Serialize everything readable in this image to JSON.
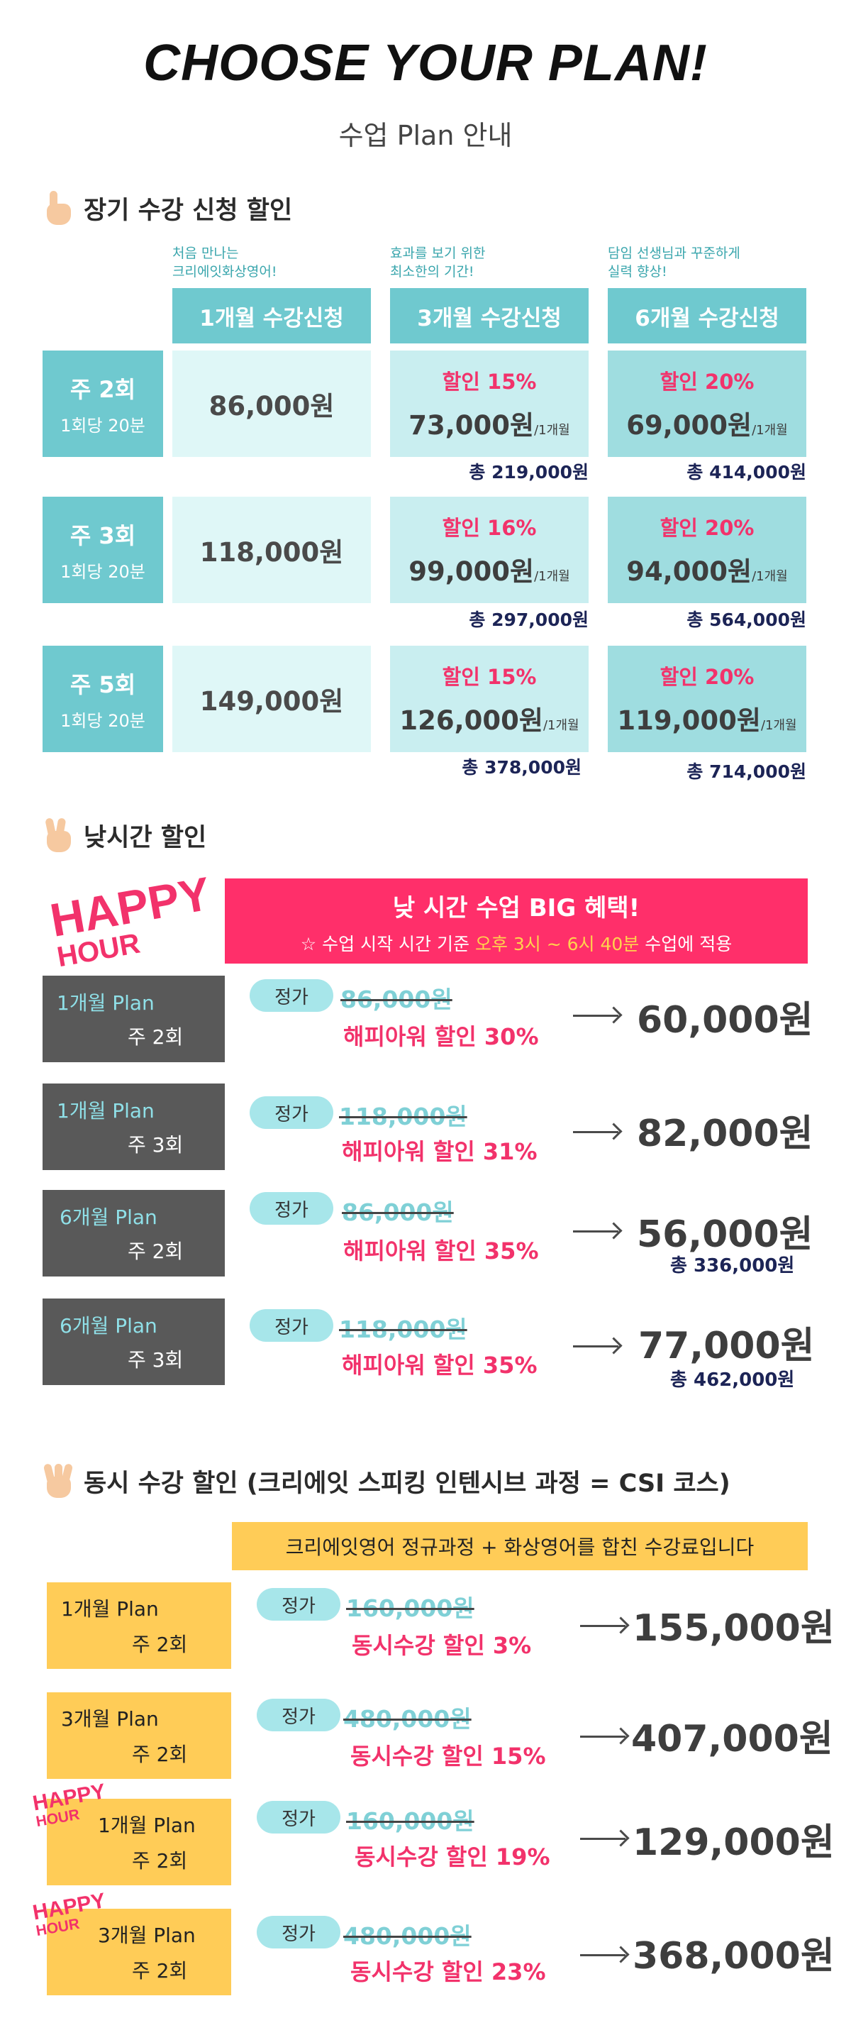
{
  "header": {
    "title": "CHOOSE YOUR PLAN!",
    "subtitle": "수업 Plan 안내"
  },
  "long_term": {
    "heading": "장기 수강 신청 할인",
    "columns": [
      {
        "note1": "처음 만나는",
        "note2": "크리에잇화상영어!",
        "label": "1개월 수강신청"
      },
      {
        "note1": "효과를 보기 위한",
        "note2": "최소한의 기간!",
        "label": "3개월 수강신청"
      },
      {
        "note1": "담임 선생님과 꾸준하게",
        "note2": "실력 향상!",
        "label": "6개월 수강신청"
      }
    ],
    "rows": [
      {
        "weekly": "주 2회",
        "session": "1회당 20분",
        "one_month": "86,000원",
        "three": {
          "discount": "할인 15%",
          "price": "73,000원",
          "unit": "/1개월",
          "total": "총 219,000원"
        },
        "six": {
          "discount": "할인 20%",
          "price": "69,000원",
          "unit": "/1개월",
          "total": "총 414,000원"
        }
      },
      {
        "weekly": "주 3회",
        "session": "1회당 20분",
        "one_month": "118,000원",
        "three": {
          "discount": "할인 16%",
          "price": "99,000원",
          "unit": "/1개월",
          "total": "총 297,000원"
        },
        "six": {
          "discount": "할인 20%",
          "price": "94,000원",
          "unit": "/1개월",
          "total": "총 564,000원"
        }
      },
      {
        "weekly": "주 5회",
        "session": "1회당 20분",
        "one_month": "149,000원",
        "three": {
          "discount": "할인 15%",
          "price": "126,000원",
          "unit": "/1개월",
          "total": "총 378,000원"
        },
        "six": {
          "discount": "할인 20%",
          "price": "119,000원",
          "unit": "/1개월",
          "total": "총 714,000원"
        }
      }
    ]
  },
  "daytime": {
    "heading": "낮시간 할인",
    "logo_line1": "HAPPY",
    "logo_line2": "HOUR",
    "banner_title": "낮 시간 수업 BIG 혜택!",
    "banner_pre": "☆ 수업 시작 시간 기준 ",
    "banner_highlight": "오후 3시 ~ 6시 40분",
    "banner_post": " 수업에 적용",
    "plans": [
      {
        "plan": "1개월 Plan",
        "freq": "주 2회",
        "pill": "정가",
        "regular": "86,000원",
        "discount": "해피아워 할인 30%",
        "final": "60,000원",
        "total": ""
      },
      {
        "plan": "1개월 Plan",
        "freq": "주 3회",
        "pill": "정가",
        "regular": "118,000원",
        "discount": "해피아워 할인 31%",
        "final": "82,000원",
        "total": ""
      },
      {
        "plan": "6개월 Plan",
        "freq": "주 2회",
        "pill": "정가",
        "regular": "86,000원",
        "discount": "해피아워 할인 35%",
        "final": "56,000원",
        "total": "총 336,000원"
      },
      {
        "plan": "6개월 Plan",
        "freq": "주 3회",
        "pill": "정가",
        "regular": "118,000원",
        "discount": "해피아워 할인 35%",
        "final": "77,000원",
        "total": "총 462,000원"
      }
    ]
  },
  "simultaneous": {
    "heading": "동시 수강 할인 (크리에잇 스피킹 인텐시브 과정 = CSI 코스)",
    "banner": "크리에잇영어 정규과정 + 화상영어를 합친 수강료입니다",
    "plans": [
      {
        "plan": "1개월 Plan",
        "freq": "주 2회",
        "pill": "정가",
        "regular": "160,000원",
        "discount": "동시수강 할인 3%",
        "final": "155,000원",
        "happy": false
      },
      {
        "plan": "3개월 Plan",
        "freq": "주 2회",
        "pill": "정가",
        "regular": "480,000원",
        "discount": "동시수강 할인 15%",
        "final": "407,000원",
        "happy": false
      },
      {
        "plan": "1개월 Plan",
        "freq": "주 2회",
        "pill": "정가",
        "regular": "160,000원",
        "discount": "동시수강 할인 19%",
        "final": "129,000원",
        "happy": true
      },
      {
        "plan": "3개월 Plan",
        "freq": "주 2회",
        "pill": "정가",
        "regular": "480,000원",
        "discount": "동시수강 할인 23%",
        "final": "368,000원",
        "happy": true
      }
    ]
  }
}
